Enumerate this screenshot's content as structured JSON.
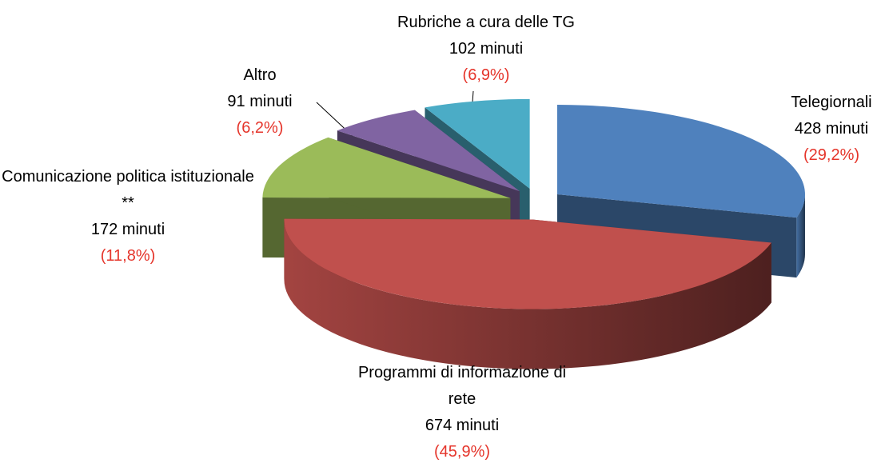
{
  "chart_data": {
    "type": "pie3d",
    "categories": [
      "Telegiornali",
      "Programmi di informazione di rete",
      "Comunicazione politica istituzionale **",
      "Altro",
      "Rubriche a cura delle TG"
    ],
    "values": [
      428,
      674,
      172,
      91,
      102
    ],
    "value_labels": [
      "428 minuti",
      "674 minuti",
      "172 minuti",
      "91 minuti",
      "102 minuti"
    ],
    "percentages": [
      29.2,
      45.9,
      11.8,
      6.2,
      6.9
    ],
    "percentage_labels": [
      "(29,2%)",
      "(45,9%)",
      "(11,8%)",
      "(6,2%)",
      "(6,9%)"
    ],
    "colors": [
      "#4f81bd",
      "#c0504d",
      "#9bbb59",
      "#8064a2",
      "#4bacc6"
    ],
    "percentage_color": "#e5352b",
    "exploded": true
  }
}
